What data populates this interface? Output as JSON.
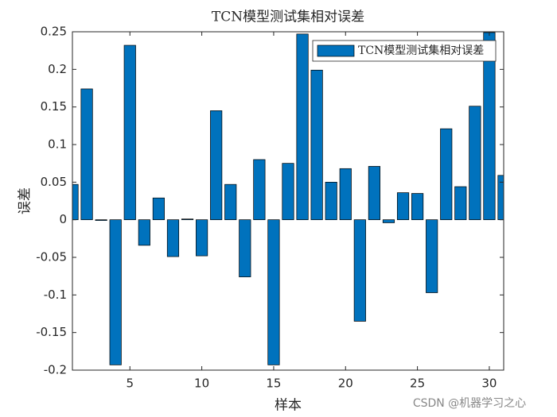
{
  "chart_data": {
    "type": "bar",
    "title": "TCN模型测试集相对误差",
    "xlabel": "样本",
    "ylabel": "误差",
    "x": [
      1,
      2,
      3,
      4,
      5,
      6,
      7,
      8,
      9,
      10,
      11,
      12,
      13,
      14,
      15,
      16,
      17,
      18,
      19,
      20,
      21,
      22,
      23,
      24,
      25,
      26,
      27,
      28,
      29,
      30,
      31
    ],
    "series": [
      {
        "name": "TCN模型测试集相对误差",
        "color": "#0072bd",
        "values": [
          0.047,
          0.174,
          -0.001,
          -0.193,
          0.232,
          -0.034,
          0.029,
          -0.049,
          0.001,
          -0.048,
          0.145,
          0.047,
          -0.076,
          0.08,
          -0.193,
          0.075,
          0.247,
          0.199,
          0.05,
          0.068,
          -0.135,
          0.071,
          -0.004,
          0.036,
          0.035,
          -0.097,
          0.121,
          0.044,
          0.151,
          0.249,
          0.059
        ]
      }
    ],
    "xlim": [
      1,
      31
    ],
    "xticks": [
      5,
      10,
      15,
      20,
      25,
      30
    ],
    "ylim": [
      -0.2,
      0.25
    ],
    "yticks": [
      -0.2,
      -0.15,
      -0.1,
      -0.05,
      0,
      0.05,
      0.1,
      0.15,
      0.2,
      0.25
    ],
    "legend": "top-right",
    "watermark": "CSDN @机器学习之心"
  }
}
